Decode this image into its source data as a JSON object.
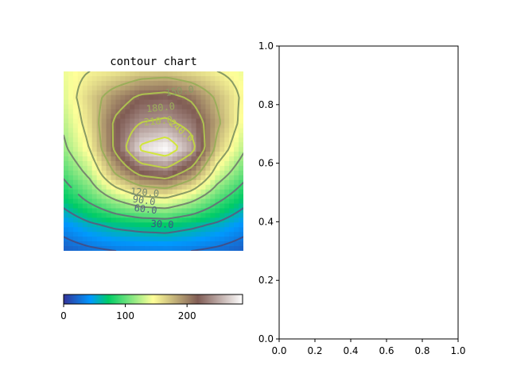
{
  "chart_data": [
    {
      "type": "heatmap",
      "subtype": "contour",
      "title": "contour chart",
      "colormap": "terrain",
      "axes_visible": false,
      "grid": {
        "rows": 8,
        "cols": 8,
        "values": [
          [
            140,
            150,
            155,
            165,
            168,
            160,
            150,
            140
          ],
          [
            135,
            165,
            195,
            215,
            220,
            205,
            175,
            145
          ],
          [
            125,
            160,
            215,
            240,
            245,
            230,
            185,
            140
          ],
          [
            115,
            150,
            215,
            275,
            290,
            250,
            170,
            125
          ],
          [
            95,
            125,
            180,
            215,
            225,
            195,
            135,
            100
          ],
          [
            70,
            95,
            120,
            140,
            145,
            125,
            95,
            70
          ],
          [
            40,
            55,
            65,
            70,
            72,
            65,
            55,
            40
          ],
          [
            18,
            25,
            30,
            32,
            33,
            30,
            25,
            18
          ]
        ]
      },
      "contour_levels": [
        30,
        60,
        90,
        120,
        150,
        180,
        210,
        240,
        270
      ],
      "contour_labels": [
        "150.0",
        "180.0",
        "210.0",
        "240.0",
        "120.0",
        "90.0",
        "60.0",
        "30.0"
      ],
      "colorbar": {
        "orientation": "horizontal",
        "range": [
          0,
          290
        ],
        "ticks": [
          0,
          100,
          200
        ],
        "tick_labels": [
          "0",
          "100",
          "200"
        ]
      }
    },
    {
      "type": "line",
      "title": "",
      "xlim": [
        0,
        1
      ],
      "ylim": [
        0,
        1
      ],
      "xticks": [
        "0.0",
        "0.2",
        "0.4",
        "0.6",
        "0.8",
        "1.0"
      ],
      "yticks": [
        "0.0",
        "0.2",
        "0.4",
        "0.6",
        "0.8",
        "1.0"
      ],
      "series": []
    }
  ]
}
